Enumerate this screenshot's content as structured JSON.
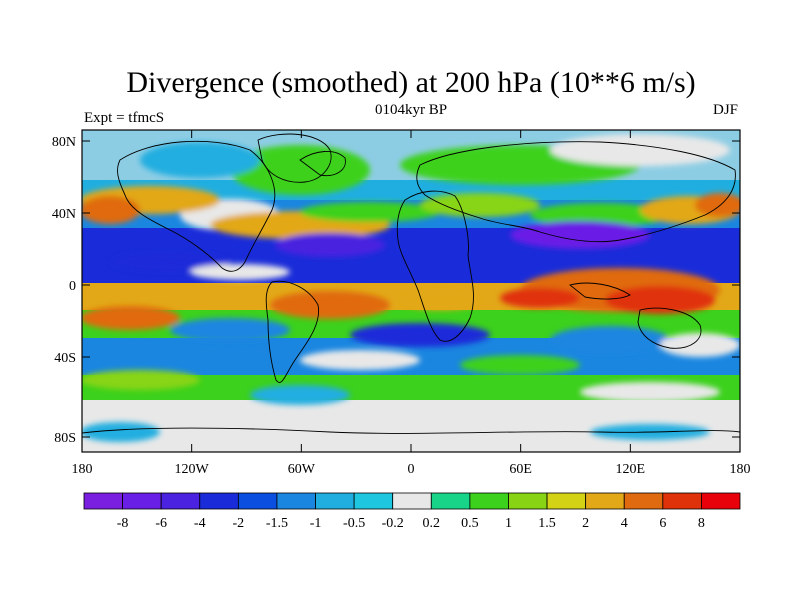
{
  "title": "Divergence (smoothed) at 200 hPa (10**6 m/s)",
  "subtitle_left": "Expt = tfmcS",
  "subtitle_center": "0104kyr BP",
  "subtitle_right": "DJF",
  "lat_ticks": [
    "80N",
    "40N",
    "0",
    "40S",
    "80S"
  ],
  "lon_ticks": [
    "180",
    "120W",
    "60W",
    "0",
    "60E",
    "120E",
    "180"
  ],
  "colorbar": {
    "labels": [
      "-8",
      "-6",
      "-4",
      "-2",
      "-1.5",
      "-1",
      "-0.5",
      "-0.2",
      "0.2",
      "0.5",
      "1",
      "1.5",
      "2",
      "4",
      "6",
      "8"
    ],
    "colors": [
      "#7a1ee0",
      "#6a1fe6",
      "#4a22e0",
      "#1a2cd9",
      "#0a4fe0",
      "#1a86e0",
      "#20aee0",
      "#1ec6e0",
      "#e8e8e8",
      "#18d488",
      "#3cd11c",
      "#88d414",
      "#d4d214",
      "#e2a818",
      "#e06a10",
      "#e0320a",
      "#e8000a"
    ]
  }
}
